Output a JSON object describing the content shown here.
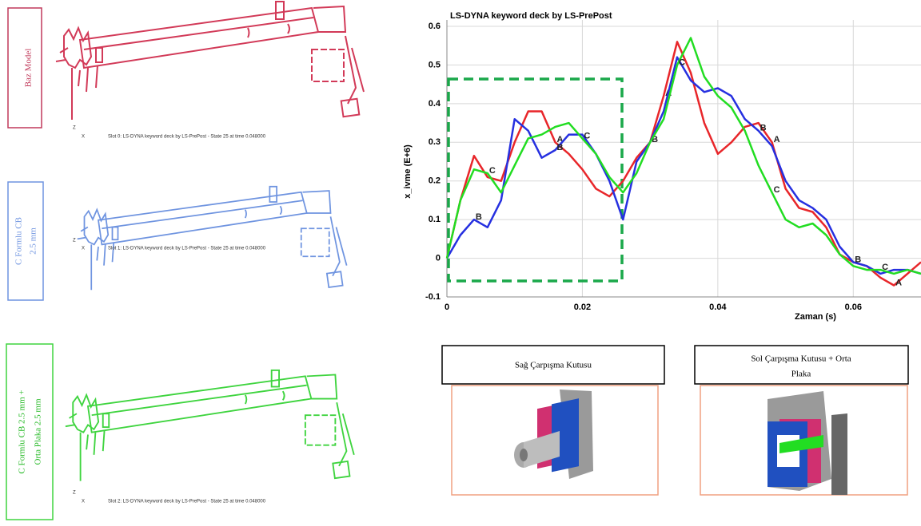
{
  "panels": [
    {
      "label": [
        "Baz Model"
      ],
      "triad_z": "Z",
      "triad_x": "X",
      "caption": "Slot 0: LS-DYNA keyword deck by LS-PrePost - State 25 at time 0.048000"
    },
    {
      "label": [
        "C Formlu CB",
        "2.5 mm"
      ],
      "triad_z": "Z",
      "triad_x": "X",
      "caption": "Slot 1: LS-DYNA keyword deck by LS-PrePost - State 25 at time 0.048000"
    },
    {
      "label": [
        "C Formlu CB 2.5 mm +",
        "Orta Plaka 2.5 mm"
      ],
      "triad_z": "Z",
      "triad_x": "X",
      "caption": "Slot 2: LS-DYNA keyword deck by LS-PrePost - State 25 at time 0.048000"
    }
  ],
  "chart_data": {
    "type": "line",
    "title": "LS-DYNA keyword deck by LS-PrePost",
    "x_label": "Zaman (s)",
    "y_label": "x_ivme (E+6)",
    "x": [
      0,
      0.002,
      0.004,
      0.006,
      0.008,
      0.01,
      0.012,
      0.014,
      0.016,
      0.018,
      0.02,
      0.022,
      0.024,
      0.026,
      0.028,
      0.03,
      0.032,
      0.034,
      0.036,
      0.038,
      0.04,
      0.042,
      0.044,
      0.046,
      0.048,
      0.05,
      0.052,
      0.054,
      0.056,
      0.058,
      0.06,
      0.062,
      0.064,
      0.066,
      0.068,
      0.07
    ],
    "series": [
      {
        "name": "A",
        "color": "#e8262a",
        "values": [
          0,
          0.15,
          0.265,
          0.21,
          0.2,
          0.3,
          0.38,
          0.38,
          0.3,
          0.27,
          0.23,
          0.18,
          0.16,
          0.2,
          0.26,
          0.3,
          0.42,
          0.56,
          0.48,
          0.35,
          0.27,
          0.3,
          0.34,
          0.35,
          0.3,
          0.18,
          0.13,
          0.12,
          0.08,
          0.01,
          -0.01,
          -0.02,
          -0.05,
          -0.07,
          -0.04,
          -0.01
        ]
      },
      {
        "name": "B",
        "color": "#2630e0",
        "values": [
          0,
          0.06,
          0.1,
          0.08,
          0.15,
          0.36,
          0.33,
          0.26,
          0.28,
          0.32,
          0.32,
          0.27,
          0.2,
          0.1,
          0.25,
          0.3,
          0.38,
          0.52,
          0.46,
          0.43,
          0.44,
          0.42,
          0.36,
          0.33,
          0.29,
          0.2,
          0.15,
          0.13,
          0.1,
          0.03,
          -0.01,
          -0.02,
          -0.04,
          -0.03,
          -0.03,
          -0.04
        ]
      },
      {
        "name": "C",
        "color": "#22dd22",
        "values": [
          0,
          0.15,
          0.23,
          0.22,
          0.17,
          0.24,
          0.31,
          0.32,
          0.34,
          0.35,
          0.31,
          0.27,
          0.21,
          0.17,
          0.22,
          0.3,
          0.36,
          0.5,
          0.57,
          0.47,
          0.42,
          0.39,
          0.33,
          0.24,
          0.17,
          0.1,
          0.08,
          0.09,
          0.06,
          0.01,
          -0.02,
          -0.03,
          -0.03,
          -0.04,
          -0.03,
          -0.04
        ]
      }
    ],
    "xlim": [
      0,
      0.07
    ],
    "ylim": [
      -0.1,
      0.6
    ],
    "xticks": [
      0,
      0.02,
      0.04,
      0.06
    ],
    "yticks": [
      -0.1,
      0,
      0.1,
      0.2,
      0.3,
      0.4,
      0.5,
      0.6
    ],
    "grid": true
  },
  "insets": [
    {
      "label": [
        "Sağ Çarpışma Kutusu"
      ]
    },
    {
      "label": [
        "Sol Çarpışma Kutusu + Orta",
        "Plaka"
      ]
    }
  ]
}
